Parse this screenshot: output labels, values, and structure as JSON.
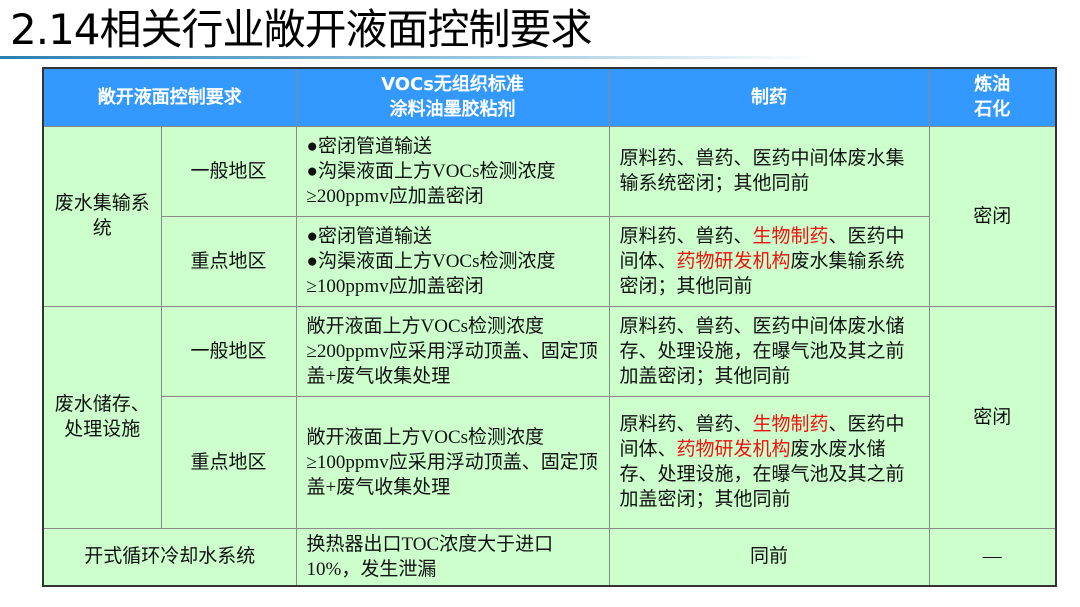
{
  "title": "2.14相关行业敞开液面控制要求",
  "headers": {
    "req": "敞开液面控制要求",
    "vocs_l1": "VOCs无组织标准",
    "vocs_l2": "涂料油墨胶粘剂",
    "pharma": "制药",
    "petro_l1": "炼油",
    "petro_l2": "石化"
  },
  "rows": {
    "ww_collect": {
      "label": "废水集输系统",
      "general": {
        "area": "一般地区",
        "vocs": [
          "●密闭管道输送",
          "●沟渠液面上方VOCs检测浓度≥200ppmv应加盖密闭"
        ],
        "pharma": "原料药、兽药、医药中间体废水集输系统密闭；其他同前"
      },
      "key": {
        "area": "重点地区",
        "vocs": [
          "●密闭管道输送",
          "●沟渠液面上方VOCs检测浓度≥100ppmv应加盖密闭"
        ],
        "pharma": [
          "原料药、兽药、",
          "生物制药",
          "、医药中间体、",
          "药物研发机构",
          "废水集输系统密闭；其他同前"
        ]
      },
      "petro": "密闭"
    },
    "ww_storage": {
      "label": "废水储存、处理设施",
      "general": {
        "area": "一般地区",
        "vocs": "敞开液面上方VOCs检测浓度≥200ppmv应采用浮动顶盖、固定顶盖+废气收集处理",
        "pharma": "原料药、兽药、医药中间体废水储存、处理设施，在曝气池及其之前加盖密闭；其他同前"
      },
      "key": {
        "area": "重点地区",
        "vocs": "敞开液面上方VOCs检测浓度≥100ppmv应采用浮动顶盖、固定顶盖+废气收集处理",
        "pharma": [
          "原料药、兽药、",
          "生物制药",
          "、医药中间体、",
          "药物研发机构",
          "废水废水储存、处理设施，在曝气池及其之前加盖密闭；其他同前"
        ]
      },
      "petro": "密闭"
    },
    "cooling": {
      "label": "开式循环冷却水系统",
      "vocs": "换热器出口TOC浓度大于进口10%，发生泄漏",
      "pharma": "同前",
      "petro": "—"
    }
  },
  "colors": {
    "header": "#3399ff",
    "cell": "#ccffcc",
    "highlight": "#ee1111"
  }
}
